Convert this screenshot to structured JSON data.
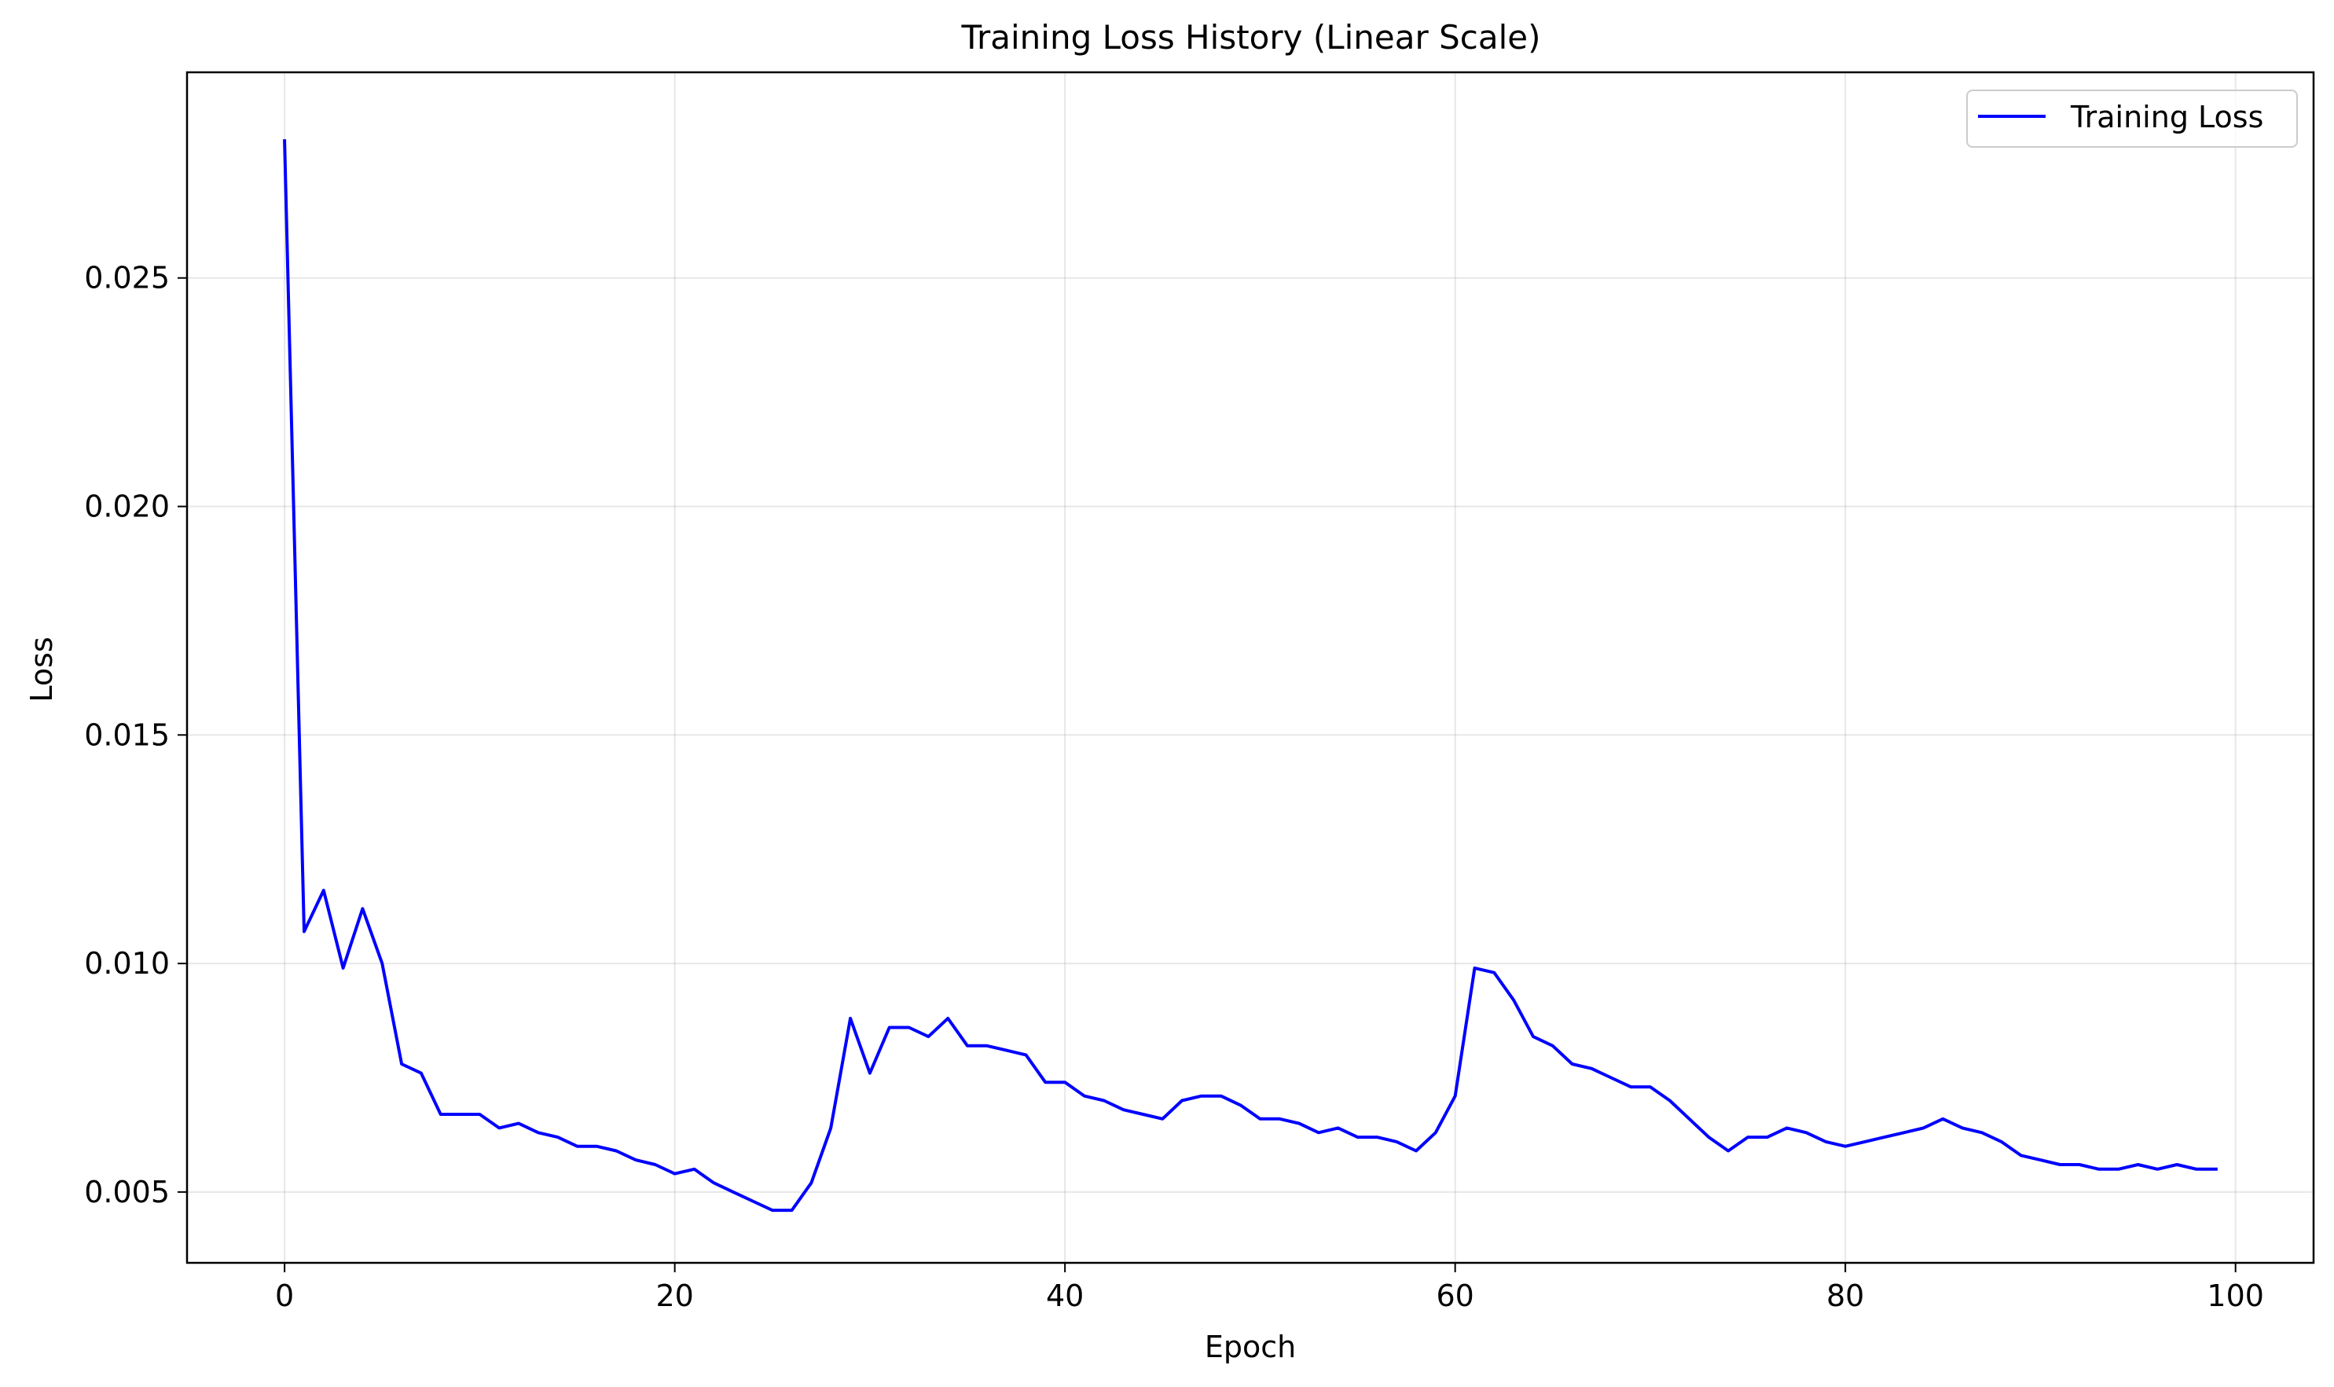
{
  "chart_data": {
    "type": "line",
    "title": "Training Loss History (Linear Scale)",
    "xlabel": "Epoch",
    "ylabel": "Loss",
    "xlim": [
      -5,
      104
    ],
    "ylim": [
      0.00345,
      0.0295
    ],
    "xticks": [
      0,
      20,
      40,
      60,
      80,
      100
    ],
    "xtick_labels": [
      "0",
      "20",
      "40",
      "60",
      "80",
      "100"
    ],
    "yticks": [
      0.005,
      0.01,
      0.015,
      0.02,
      0.025
    ],
    "ytick_labels": [
      "0.005",
      "0.010",
      "0.015",
      "0.020",
      "0.025"
    ],
    "grid": true,
    "legend_position": "top-right",
    "series": [
      {
        "name": "Training Loss",
        "color": "#0000ff",
        "x": [
          0,
          1,
          2,
          3,
          4,
          5,
          6,
          7,
          8,
          9,
          10,
          11,
          12,
          13,
          14,
          15,
          16,
          17,
          18,
          19,
          20,
          21,
          22,
          23,
          24,
          25,
          26,
          27,
          28,
          29,
          30,
          31,
          32,
          33,
          34,
          35,
          36,
          37,
          38,
          39,
          40,
          41,
          42,
          43,
          44,
          45,
          46,
          47,
          48,
          49,
          50,
          51,
          52,
          53,
          54,
          55,
          56,
          57,
          58,
          59,
          60,
          61,
          62,
          63,
          64,
          65,
          66,
          67,
          68,
          69,
          70,
          71,
          72,
          73,
          74,
          75,
          76,
          77,
          78,
          79,
          80,
          81,
          82,
          83,
          84,
          85,
          86,
          87,
          88,
          89,
          90,
          91,
          92,
          93,
          94,
          95,
          96,
          97,
          98,
          99
        ],
        "values": [
          0.028,
          0.0107,
          0.0116,
          0.0099,
          0.0112,
          0.01,
          0.0078,
          0.0076,
          0.0067,
          0.0067,
          0.0067,
          0.0064,
          0.0065,
          0.0063,
          0.0062,
          0.006,
          0.006,
          0.0059,
          0.0057,
          0.0056,
          0.0054,
          0.0055,
          0.0052,
          0.005,
          0.0048,
          0.0046,
          0.0046,
          0.0052,
          0.0064,
          0.0088,
          0.0076,
          0.0086,
          0.0086,
          0.0084,
          0.0088,
          0.0082,
          0.0082,
          0.0081,
          0.008,
          0.0074,
          0.0074,
          0.0071,
          0.007,
          0.0068,
          0.0067,
          0.0066,
          0.007,
          0.0071,
          0.0071,
          0.0069,
          0.0066,
          0.0066,
          0.0065,
          0.0063,
          0.0064,
          0.0062,
          0.0062,
          0.0061,
          0.0059,
          0.0063,
          0.0071,
          0.0099,
          0.0098,
          0.0092,
          0.0084,
          0.0082,
          0.0078,
          0.0077,
          0.0075,
          0.0073,
          0.0073,
          0.007,
          0.0066,
          0.0062,
          0.0059,
          0.0062,
          0.0062,
          0.0064,
          0.0063,
          0.0061,
          0.006,
          0.0061,
          0.0062,
          0.0063,
          0.0064,
          0.0066,
          0.0064,
          0.0063,
          0.0061,
          0.0058,
          0.0057,
          0.0056,
          0.0056,
          0.0055,
          0.0055,
          0.0056,
          0.0055,
          0.0056,
          0.0055,
          0.0055
        ]
      }
    ]
  }
}
